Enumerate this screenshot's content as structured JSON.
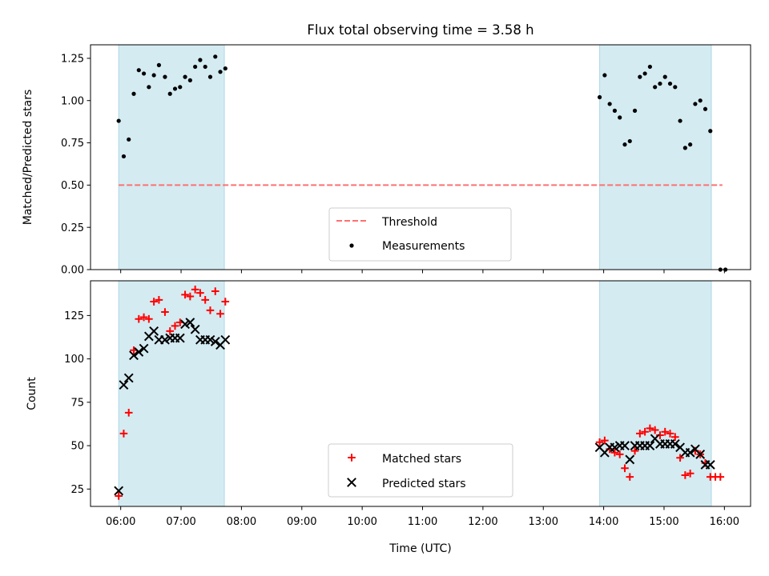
{
  "chart_data": [
    {
      "type": "scatter",
      "title": "Flux total observing time = 3.58 h",
      "ylabel": "Matched/Predicted stars",
      "xlabel": "",
      "ylim": [
        0,
        1.33
      ],
      "yticks": [
        0.0,
        0.25,
        0.5,
        0.75,
        1.0,
        1.25
      ],
      "ytick_labels": [
        "0.00",
        "0.25",
        "0.50",
        "0.75",
        "1.00",
        "1.25"
      ],
      "shaded_intervals": [
        [
          "05:58",
          "07:43"
        ],
        [
          "13:56",
          "15:47"
        ]
      ],
      "threshold": {
        "name": "Threshold",
        "y": 0.5,
        "x_range": [
          "05:58",
          "15:58"
        ],
        "color": "#ff7070",
        "style": "dashed"
      },
      "legend_position": "lower center",
      "series": [
        {
          "name": "Measurements",
          "marker": "dot",
          "color": "#000000",
          "points": [
            [
              "05:58",
              0.88
            ],
            [
              "06:03",
              0.67
            ],
            [
              "06:08",
              0.77
            ],
            [
              "06:13",
              1.04
            ],
            [
              "06:18",
              1.18
            ],
            [
              "06:23",
              1.16
            ],
            [
              "06:28",
              1.08
            ],
            [
              "06:33",
              1.15
            ],
            [
              "06:38",
              1.21
            ],
            [
              "06:44",
              1.14
            ],
            [
              "06:49",
              1.04
            ],
            [
              "06:54",
              1.07
            ],
            [
              "06:59",
              1.08
            ],
            [
              "07:04",
              1.14
            ],
            [
              "07:09",
              1.12
            ],
            [
              "07:14",
              1.2
            ],
            [
              "07:19",
              1.24
            ],
            [
              "07:24",
              1.2
            ],
            [
              "07:29",
              1.14
            ],
            [
              "07:34",
              1.26
            ],
            [
              "07:39",
              1.17
            ],
            [
              "07:44",
              1.19
            ],
            [
              "13:56",
              1.02
            ],
            [
              "14:01",
              1.15
            ],
            [
              "14:06",
              0.98
            ],
            [
              "14:11",
              0.94
            ],
            [
              "14:16",
              0.9
            ],
            [
              "14:21",
              0.74
            ],
            [
              "14:26",
              0.76
            ],
            [
              "14:31",
              0.94
            ],
            [
              "14:36",
              1.14
            ],
            [
              "14:41",
              1.16
            ],
            [
              "14:46",
              1.2
            ],
            [
              "14:51",
              1.08
            ],
            [
              "14:56",
              1.1
            ],
            [
              "15:01",
              1.14
            ],
            [
              "15:06",
              1.1
            ],
            [
              "15:11",
              1.08
            ],
            [
              "15:16",
              0.88
            ],
            [
              "15:21",
              0.72
            ],
            [
              "15:26",
              0.74
            ],
            [
              "15:31",
              0.98
            ],
            [
              "15:36",
              1.0
            ],
            [
              "15:41",
              0.95
            ],
            [
              "15:46",
              0.82
            ],
            [
              "15:56",
              0.0
            ],
            [
              "16:01",
              0.0
            ]
          ]
        }
      ]
    },
    {
      "type": "scatter",
      "title": "",
      "ylabel": "Count",
      "xlabel": "Time (UTC)",
      "ylim": [
        15,
        145
      ],
      "yticks": [
        25,
        50,
        75,
        100,
        125
      ],
      "ytick_labels": [
        "25",
        "50",
        "75",
        "100",
        "125"
      ],
      "x_ticks": [
        "06:00",
        "07:00",
        "08:00",
        "09:00",
        "10:00",
        "11:00",
        "12:00",
        "13:00",
        "14:00",
        "15:00",
        "16:00"
      ],
      "xlim": [
        "05:30",
        "16:26"
      ],
      "shaded_intervals": [
        [
          "05:58",
          "07:43"
        ],
        [
          "13:56",
          "15:47"
        ]
      ],
      "legend_position": "lower center",
      "series": [
        {
          "name": "Matched stars",
          "marker": "plus",
          "color": "#ff0000",
          "points": [
            [
              "05:58",
              21
            ],
            [
              "06:03",
              57
            ],
            [
              "06:08",
              69
            ],
            [
              "06:13",
              105
            ],
            [
              "06:18",
              123
            ],
            [
              "06:23",
              124
            ],
            [
              "06:28",
              123
            ],
            [
              "06:33",
              133
            ],
            [
              "06:38",
              134
            ],
            [
              "06:44",
              127
            ],
            [
              "06:49",
              116
            ],
            [
              "06:54",
              119
            ],
            [
              "06:59",
              121
            ],
            [
              "07:04",
              137
            ],
            [
              "07:09",
              136
            ],
            [
              "07:14",
              140
            ],
            [
              "07:19",
              138
            ],
            [
              "07:24",
              134
            ],
            [
              "07:29",
              128
            ],
            [
              "07:34",
              139
            ],
            [
              "07:39",
              126
            ],
            [
              "07:44",
              133
            ],
            [
              "13:56",
              52
            ],
            [
              "14:01",
              53
            ],
            [
              "14:06",
              48
            ],
            [
              "14:11",
              46
            ],
            [
              "14:16",
              45
            ],
            [
              "14:21",
              37
            ],
            [
              "14:26",
              32
            ],
            [
              "14:31",
              47
            ],
            [
              "14:36",
              57
            ],
            [
              "14:41",
              58
            ],
            [
              "14:46",
              60
            ],
            [
              "14:51",
              59
            ],
            [
              "14:56",
              56
            ],
            [
              "15:01",
              58
            ],
            [
              "15:06",
              57
            ],
            [
              "15:11",
              55
            ],
            [
              "15:16",
              43
            ],
            [
              "15:21",
              33
            ],
            [
              "15:26",
              34
            ],
            [
              "15:31",
              47
            ],
            [
              "15:36",
              45
            ],
            [
              "15:41",
              40
            ],
            [
              "15:46",
              32
            ],
            [
              "15:51",
              32
            ],
            [
              "15:56",
              32
            ]
          ]
        },
        {
          "name": "Predicted stars",
          "marker": "x",
          "color": "#000000",
          "points": [
            [
              "05:58",
              24
            ],
            [
              "06:03",
              85
            ],
            [
              "06:08",
              89
            ],
            [
              "06:13",
              102
            ],
            [
              "06:18",
              104
            ],
            [
              "06:23",
              106
            ],
            [
              "06:28",
              113
            ],
            [
              "06:33",
              116
            ],
            [
              "06:38",
              111
            ],
            [
              "06:44",
              111
            ],
            [
              "06:49",
              112
            ],
            [
              "06:54",
              112
            ],
            [
              "06:59",
              112
            ],
            [
              "07:04",
              120
            ],
            [
              "07:09",
              121
            ],
            [
              "07:14",
              117
            ],
            [
              "07:19",
              111
            ],
            [
              "07:24",
              111
            ],
            [
              "07:29",
              111
            ],
            [
              "07:34",
              110
            ],
            [
              "07:39",
              108
            ],
            [
              "07:44",
              111
            ],
            [
              "13:56",
              49
            ],
            [
              "14:01",
              46
            ],
            [
              "14:06",
              49
            ],
            [
              "14:11",
              49
            ],
            [
              "14:16",
              50
            ],
            [
              "14:21",
              50
            ],
            [
              "14:26",
              42
            ],
            [
              "14:31",
              50
            ],
            [
              "14:36",
              50
            ],
            [
              "14:41",
              50
            ],
            [
              "14:46",
              50
            ],
            [
              "14:51",
              54
            ],
            [
              "14:56",
              51
            ],
            [
              "15:01",
              51
            ],
            [
              "15:06",
              51
            ],
            [
              "15:11",
              51
            ],
            [
              "15:16",
              49
            ],
            [
              "15:21",
              46
            ],
            [
              "15:26",
              46
            ],
            [
              "15:31",
              48
            ],
            [
              "15:36",
              45
            ],
            [
              "15:41",
              39
            ],
            [
              "15:46",
              39
            ]
          ]
        }
      ]
    }
  ]
}
